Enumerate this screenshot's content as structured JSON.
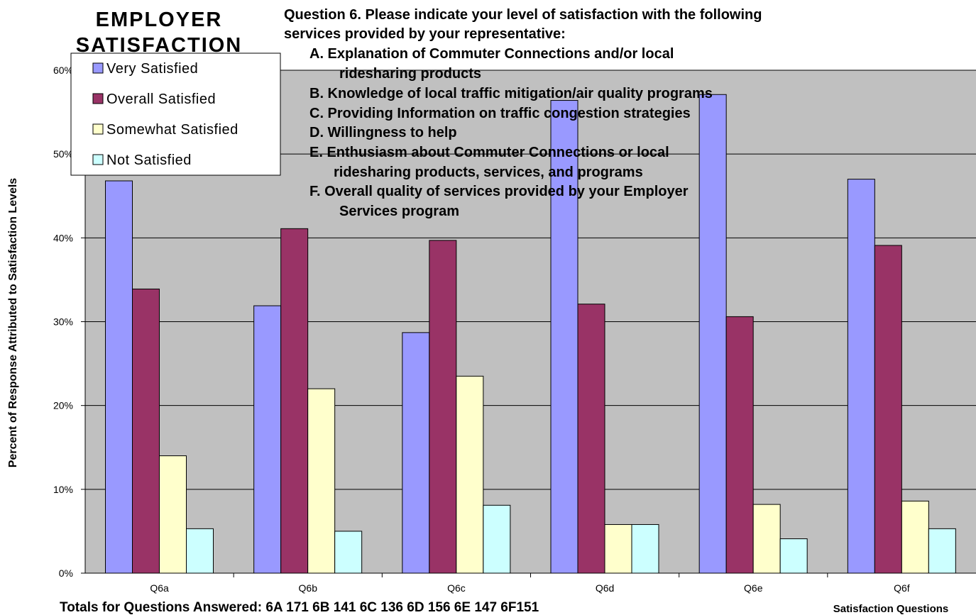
{
  "header": {
    "title_lines": [
      "EMPLOYER",
      "SATISFACTION"
    ],
    "question_lines": [
      "Question 6.  Please indicate your level of satisfaction with the following",
      "services provided by your representative:"
    ],
    "item_lines": [
      "A.  Explanation of Commuter Connections and/or local",
      "ridesharing products",
      "B.  Knowledge of local traffic mitigation/air quality programs",
      "C.  Providing Information on traffic congestion strategies",
      "D.  Willingness to help",
      "E.  Enthusiasm about Commuter Connections or local",
      "ridesharing products, services, and programs",
      "F.   Overall quality of services provided by your Employer",
      "Services program"
    ]
  },
  "footer": {
    "totals": "Totals for Questions  Answered: 6A 171 6B 141 6C 136  6D 156  6E 147  6F151"
  },
  "chart_data": {
    "type": "bar",
    "title": "EMPLOYER SATISFACTION",
    "xlabel": "Satisfaction Questions",
    "ylabel": "Percent of Response Attributed to Satisfaction Levels",
    "categories": [
      "Q6a",
      "Q6b",
      "Q6c",
      "Q6d",
      "Q6e",
      "Q6f"
    ],
    "ylim": [
      0,
      60
    ],
    "yticks": [
      "0%",
      "10%",
      "20%",
      "30%",
      "40%",
      "50%",
      "60%"
    ],
    "grid": true,
    "legend_position": "top-left",
    "series": [
      {
        "name": "Very Satisfied",
        "color": "#9999ff",
        "values": [
          46.8,
          31.9,
          28.7,
          56.4,
          57.1,
          47.0
        ]
      },
      {
        "name": "Overall Satisfied",
        "color": "#993366",
        "values": [
          33.9,
          41.1,
          39.7,
          32.1,
          30.6,
          39.1
        ]
      },
      {
        "name": "Somewhat Satisfied",
        "color": "#ffffcc",
        "values": [
          14.0,
          22.0,
          23.5,
          5.8,
          8.2,
          8.6
        ]
      },
      {
        "name": "Not Satisfied",
        "color": "#ccffff",
        "values": [
          5.3,
          5.0,
          8.1,
          5.8,
          4.1,
          5.3
        ]
      }
    ],
    "plot_background": "#c0c0c0"
  }
}
